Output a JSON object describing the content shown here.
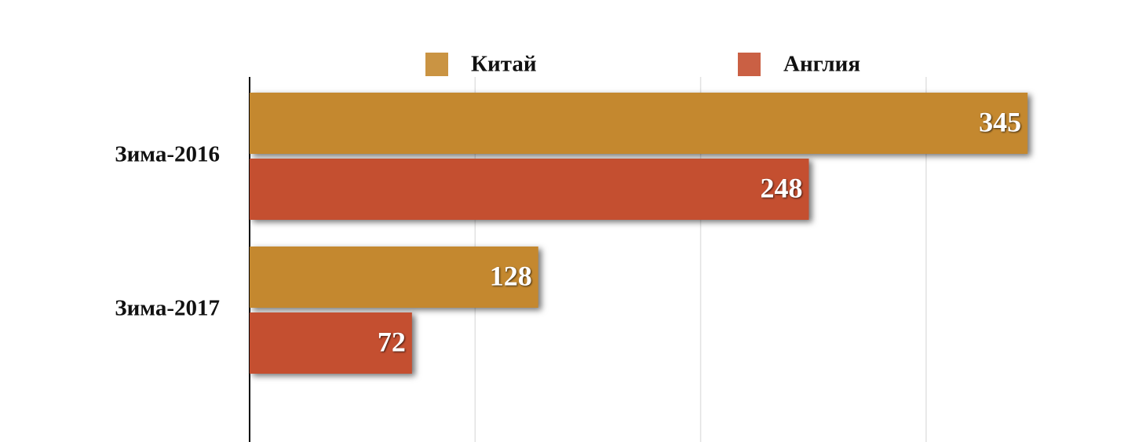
{
  "chart_data": {
    "type": "hbar",
    "categories": [
      "Зима-2016",
      "Зима-2017"
    ],
    "series": [
      {
        "name": "Китай",
        "color": "#c4882f",
        "values": [
          345,
          128
        ]
      },
      {
        "name": "Англия",
        "color": "#c44f30",
        "values": [
          248,
          72
        ]
      }
    ],
    "xlim": [
      0,
      400
    ],
    "xticks": [
      0,
      100,
      200,
      300
    ],
    "grid": true,
    "legend": "top"
  }
}
